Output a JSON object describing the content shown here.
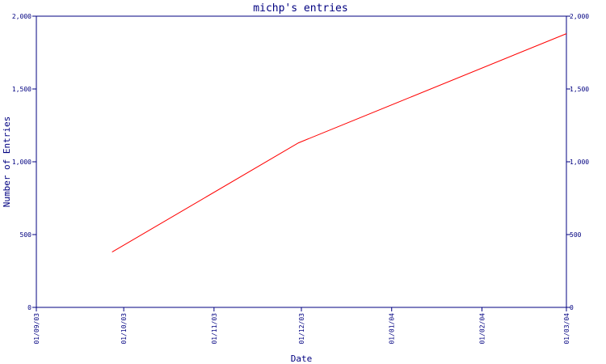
{
  "chart_data": {
    "type": "line",
    "title": "michp's entries",
    "xlabel": "Date",
    "ylabel": "Number of Entries",
    "x_ticks": [
      "01/09/03",
      "01/10/03",
      "01/11/03",
      "01/12/03",
      "01/01/04",
      "01/02/04",
      "01/03/04"
    ],
    "xlim": [
      "01/09/03",
      "01/03/04"
    ],
    "y_ticks": [
      0,
      500,
      1000,
      1500,
      2000
    ],
    "y_tick_labels": [
      "0",
      "500",
      "1,000",
      "1,500",
      "2,000"
    ],
    "ylim": [
      0,
      2000
    ],
    "grid": false,
    "secondary_y_axis": true,
    "series": [
      {
        "color": "#ff0000",
        "points": [
          {
            "x": "2003-09-27",
            "y": 380
          },
          {
            "x": "2003-11-30",
            "y": 1130
          },
          {
            "x": "2004-03-01",
            "y": 1880
          }
        ]
      }
    ]
  },
  "colors": {
    "axis": "#000080",
    "line": "#ff0000",
    "background": "#ffffff"
  }
}
